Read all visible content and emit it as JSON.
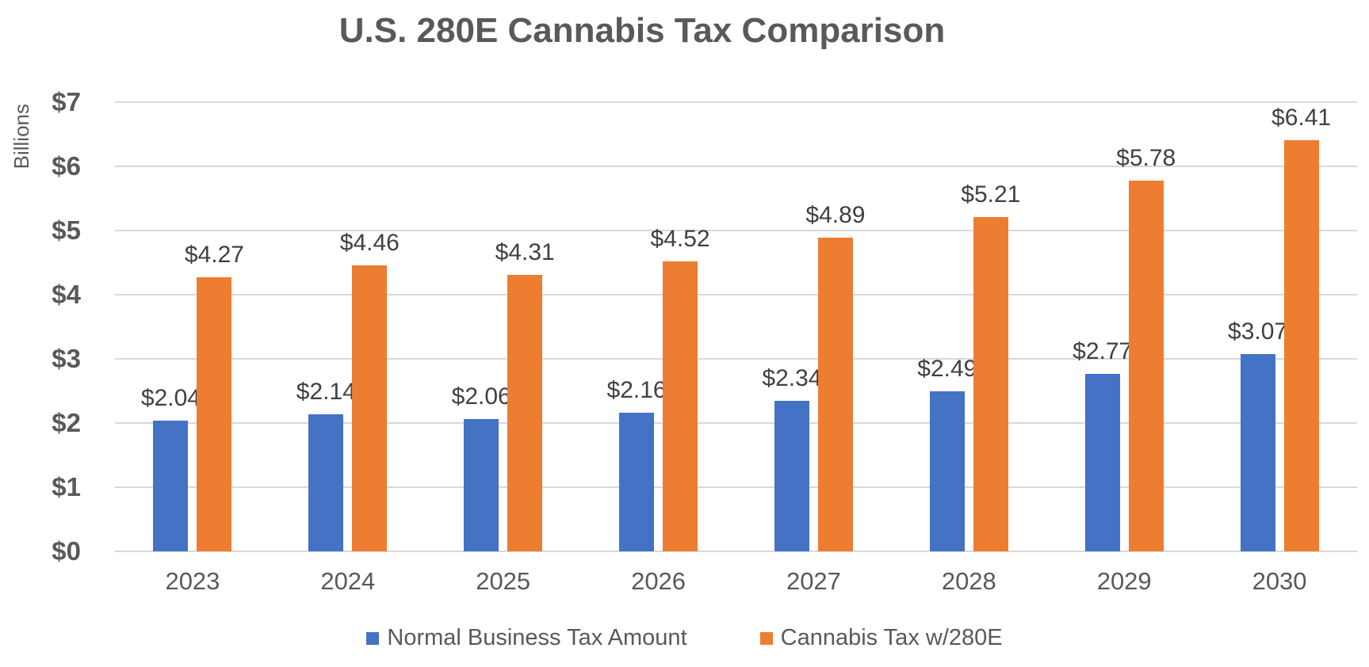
{
  "chart_data": {
    "type": "bar",
    "title": "U.S. 280E Cannabis Tax Comparison",
    "ylabel": "Billions",
    "xlabel": "",
    "categories": [
      "2023",
      "2024",
      "2025",
      "2026",
      "2027",
      "2028",
      "2029",
      "2030"
    ],
    "series": [
      {
        "name": "Normal Business Tax Amount",
        "color": "#4472C4",
        "values": [
          2.04,
          2.14,
          2.06,
          2.16,
          2.34,
          2.49,
          2.77,
          3.07
        ],
        "labels": [
          "$2.04",
          "$2.14",
          "$2.06",
          "$2.16",
          "$2.34",
          "$2.49",
          "$2.77",
          "$3.07"
        ]
      },
      {
        "name": "Cannabis Tax w/280E",
        "color": "#ED7D31",
        "values": [
          4.27,
          4.46,
          4.31,
          4.52,
          4.89,
          5.21,
          5.78,
          6.41
        ],
        "labels": [
          "$4.27",
          "$4.46",
          "$4.31",
          "$4.52",
          "$4.89",
          "$5.21",
          "$5.78",
          "$6.41"
        ]
      }
    ],
    "ylim": [
      0,
      7
    ],
    "yticks": [
      "$0",
      "$1",
      "$2",
      "$3",
      "$4",
      "$5",
      "$6",
      "$7"
    ],
    "grid": true,
    "legend_position": "bottom",
    "colors": {
      "grid": "#D9D9D9",
      "axis_text": "#595959",
      "title_text": "#595959",
      "data_label_text": "#404040"
    }
  }
}
